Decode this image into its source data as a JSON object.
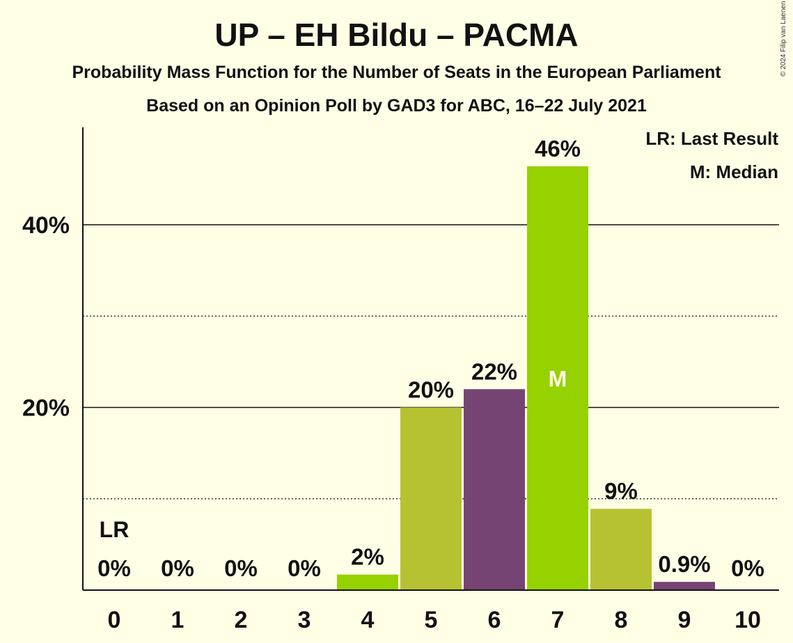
{
  "chart_data": {
    "type": "bar",
    "title": "UP – EH Bildu – PACMA",
    "subtitle": "Probability Mass Function for the Number of Seats in the European Parliament",
    "subtitle2": "Based on an Opinion Poll by GAD3 for ABC, 16–22 July 2021",
    "categories": [
      "0",
      "1",
      "2",
      "3",
      "4",
      "5",
      "6",
      "7",
      "8",
      "9",
      "10"
    ],
    "values": [
      0,
      0,
      0,
      0,
      1.7,
      20,
      22,
      46.4,
      8.9,
      0.9,
      0
    ],
    "value_labels": [
      "0%",
      "0%",
      "0%",
      "0%",
      "2%",
      "20%",
      "22%",
      "46%",
      "9%",
      "0.9%",
      "0%"
    ],
    "bar_colors": [
      "#96d100",
      "#96d100",
      "#96d100",
      "#96d100",
      "#96d100",
      "#b7c232",
      "#764473",
      "#96d100",
      "#b7c232",
      "#764473",
      "#96d100"
    ],
    "ylim": [
      0,
      50
    ],
    "y_ticks": [
      {
        "value": 20,
        "label": "20%"
      },
      {
        "value": 40,
        "label": "40%"
      }
    ],
    "dotted_gridlines": [
      10,
      30
    ],
    "markers": [
      {
        "category": "0",
        "text": "LR",
        "placement": "above-bar"
      },
      {
        "category": "7",
        "text": "M",
        "placement": "inside-bar"
      }
    ],
    "legend": {
      "placement": "top-right",
      "entries": [
        "LR: Last Result",
        "M: Median"
      ]
    }
  },
  "copyright": "© 2024 Filip van Laenen",
  "colors": {
    "background": "#ffffe6",
    "green": "#96d100",
    "olive": "#b7c232",
    "purple": "#764473",
    "text": "#111111"
  }
}
